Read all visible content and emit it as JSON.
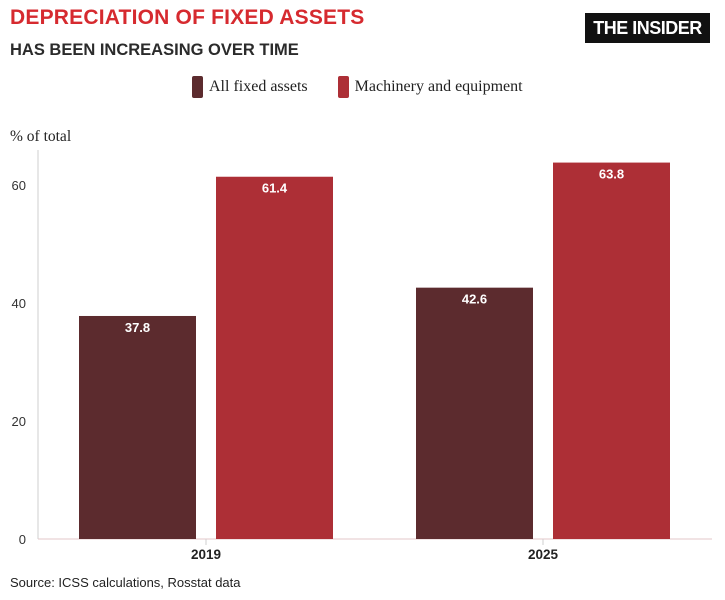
{
  "header": {
    "title": "DEPRECIATION OF FIXED ASSETS",
    "subtitle": "HAS BEEN INCREASING OVER TIME",
    "brand": "THE INSIDER"
  },
  "colors": {
    "title": "#d62a2f",
    "series_dark": "#5c2b2e",
    "series_red": "#ad2f36"
  },
  "chart_data": {
    "type": "bar",
    "categories": [
      "2019",
      "2025"
    ],
    "series": [
      {
        "name": "All fixed assets",
        "values": [
          37.8,
          42.6
        ],
        "color": "#5c2b2e"
      },
      {
        "name": "Machinery and equipment",
        "values": [
          61.4,
          63.8
        ],
        "color": "#ad2f36"
      }
    ],
    "ylabel": "% of total",
    "ylim": [
      0,
      65
    ],
    "yticks": [
      0,
      20,
      40,
      60
    ],
    "grid": false,
    "legend_position": "top",
    "data_labels": true
  },
  "footer": {
    "source": "Source: ICSS calculations, Rosstat data"
  }
}
